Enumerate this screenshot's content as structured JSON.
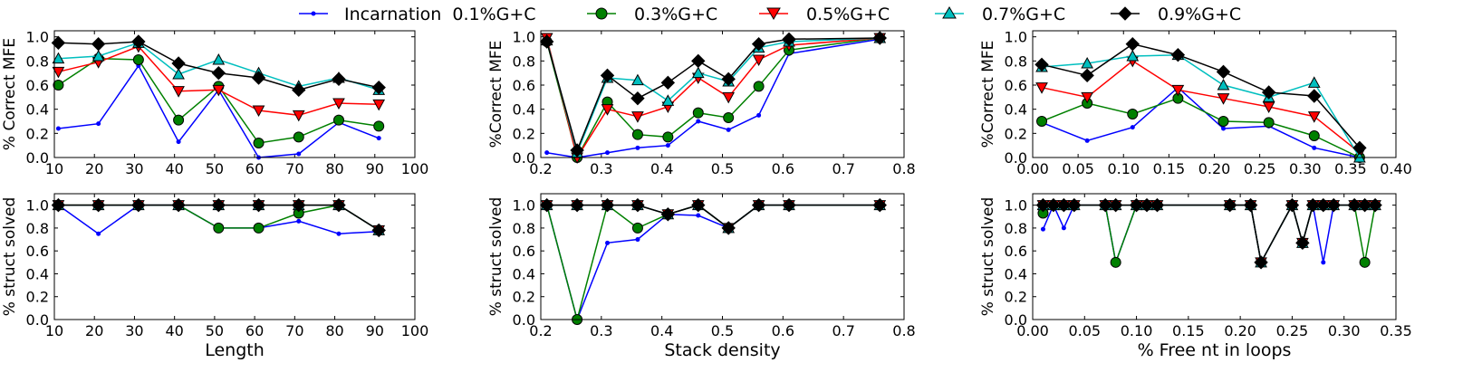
{
  "legend": {
    "items": [
      {
        "label": "Incarnation  0.1%G+C",
        "color": "#0000ff",
        "marker": "circle-small"
      },
      {
        "label": "0.3%G+C",
        "color": "#008000",
        "marker": "circle"
      },
      {
        "label": "0.5%G+C",
        "color": "#ff0000",
        "marker": "triangle-down"
      },
      {
        "label": "0.7%G+C",
        "color": "#00bfbf",
        "marker": "triangle-up"
      },
      {
        "label": "0.9%G+C",
        "color": "#000000",
        "marker": "diamond"
      }
    ]
  },
  "chart_data": [
    {
      "type": "line",
      "xlabel": "",
      "ylabel": "% Correct MFE",
      "xlim": [
        10,
        100
      ],
      "ylim": [
        0,
        1.05
      ],
      "xticks": [
        10,
        20,
        30,
        40,
        50,
        60,
        70,
        80,
        90,
        100
      ],
      "xtick_labels": [
        "10",
        "20",
        "30",
        "40",
        "50",
        "60",
        "70",
        "80",
        "90",
        "100"
      ],
      "yticks": [
        0,
        0.2,
        0.4,
        0.6,
        0.8,
        1.0
      ],
      "ytick_labels": [
        "0.0",
        "0.2",
        "0.4",
        "0.6",
        "0.8",
        "1.0"
      ],
      "x": [
        11,
        21,
        31,
        41,
        51,
        61,
        71,
        81,
        91
      ],
      "series": [
        {
          "name": "Incarnation  0.1%G+C",
          "values": [
            0.24,
            0.28,
            0.76,
            0.13,
            0.56,
            0.0,
            0.03,
            0.29,
            0.16
          ]
        },
        {
          "name": "0.3%G+C",
          "values": [
            0.6,
            0.82,
            0.81,
            0.31,
            0.59,
            0.12,
            0.17,
            0.31,
            0.26
          ]
        },
        {
          "name": "0.5%G+C",
          "values": [
            0.71,
            0.79,
            0.92,
            0.55,
            0.56,
            0.39,
            0.35,
            0.45,
            0.44
          ]
        },
        {
          "name": "0.7%G+C",
          "values": [
            0.82,
            0.84,
            0.95,
            0.69,
            0.81,
            0.7,
            0.59,
            0.66,
            0.56
          ]
        },
        {
          "name": "0.9%G+C",
          "values": [
            0.95,
            0.94,
            0.96,
            0.78,
            0.7,
            0.66,
            0.56,
            0.65,
            0.58
          ]
        }
      ]
    },
    {
      "type": "line",
      "xlabel": "",
      "ylabel": "%Correct MFE",
      "xlim": [
        0.2,
        0.8
      ],
      "ylim": [
        0,
        1.05
      ],
      "xticks": [
        0.2,
        0.3,
        0.4,
        0.5,
        0.6,
        0.7,
        0.8
      ],
      "xtick_labels": [
        "0.2",
        "0.3",
        "0.4",
        "0.5",
        "0.6",
        "0.7",
        "0.8"
      ],
      "yticks": [
        0,
        0.2,
        0.4,
        0.6,
        0.8,
        1.0
      ],
      "ytick_labels": [
        "0.0",
        "0.2",
        "0.4",
        "0.6",
        "0.8",
        "1.0"
      ],
      "x": [
        0.21,
        0.26,
        0.31,
        0.36,
        0.41,
        0.46,
        0.51,
        0.56,
        0.61,
        0.76
      ],
      "series": [
        {
          "name": "Incarnation  0.1%G+C",
          "values": [
            0.04,
            0.0,
            0.04,
            0.08,
            0.1,
            0.3,
            0.23,
            0.35,
            0.86,
            0.98
          ]
        },
        {
          "name": "0.3%G+C",
          "values": [
            0.96,
            0.0,
            0.46,
            0.19,
            0.17,
            0.37,
            0.33,
            0.59,
            0.89,
            0.99
          ]
        },
        {
          "name": "0.5%G+C",
          "values": [
            0.99,
            0.0,
            0.4,
            0.34,
            0.42,
            0.66,
            0.5,
            0.81,
            0.93,
            0.99
          ]
        },
        {
          "name": "0.7%G+C",
          "values": [
            0.97,
            0.04,
            0.66,
            0.64,
            0.47,
            0.7,
            0.63,
            0.91,
            0.96,
            0.99
          ]
        },
        {
          "name": "0.9%G+C",
          "values": [
            0.96,
            0.06,
            0.68,
            0.49,
            0.62,
            0.8,
            0.65,
            0.94,
            0.98,
            0.99
          ]
        }
      ]
    },
    {
      "type": "line",
      "xlabel": "",
      "ylabel": "%Correct MFE",
      "xlim": [
        0,
        0.4
      ],
      "ylim": [
        0,
        1.05
      ],
      "xticks": [
        0,
        0.05,
        0.1,
        0.15,
        0.2,
        0.25,
        0.3,
        0.35,
        0.4
      ],
      "xtick_labels": [
        "0.00",
        "0.05",
        "0.10",
        "0.15",
        "0.20",
        "0.25",
        "0.30",
        "0.35",
        "0.40"
      ],
      "yticks": [
        0,
        0.2,
        0.4,
        0.6,
        0.8,
        1.0
      ],
      "ytick_labels": [
        "0.0",
        "0.2",
        "0.4",
        "0.6",
        "0.8",
        "1.0"
      ],
      "x": [
        0.01,
        0.06,
        0.11,
        0.16,
        0.21,
        0.26,
        0.31,
        0.36
      ],
      "series": [
        {
          "name": "Incarnation  0.1%G+C",
          "values": [
            0.29,
            0.14,
            0.25,
            0.58,
            0.24,
            0.26,
            0.08,
            0.0
          ]
        },
        {
          "name": "0.3%G+C",
          "values": [
            0.3,
            0.45,
            0.36,
            0.49,
            0.3,
            0.29,
            0.18,
            0.0
          ]
        },
        {
          "name": "0.5%G+C",
          "values": [
            0.58,
            0.5,
            0.8,
            0.56,
            0.49,
            0.42,
            0.34,
            0.04
          ]
        },
        {
          "name": "0.7%G+C",
          "values": [
            0.75,
            0.78,
            0.84,
            0.85,
            0.6,
            0.5,
            0.62,
            0.0
          ]
        },
        {
          "name": "0.9%G+C",
          "values": [
            0.77,
            0.68,
            0.94,
            0.85,
            0.71,
            0.54,
            0.51,
            0.08
          ]
        }
      ]
    },
    {
      "type": "line",
      "xlabel": "Length",
      "ylabel": "% struct solved",
      "xlim": [
        10,
        100
      ],
      "ylim": [
        0,
        1.1
      ],
      "xticks": [
        10,
        20,
        30,
        40,
        50,
        60,
        70,
        80,
        90,
        100
      ],
      "xtick_labels": [
        "10",
        "20",
        "30",
        "40",
        "50",
        "60",
        "70",
        "80",
        "90",
        "100"
      ],
      "yticks": [
        0,
        0.2,
        0.4,
        0.6,
        0.8,
        1.0
      ],
      "ytick_labels": [
        "0.0",
        "0.2",
        "0.4",
        "0.6",
        "0.8",
        "1.0"
      ],
      "x": [
        11,
        21,
        31,
        41,
        51,
        61,
        71,
        81,
        91
      ],
      "series": [
        {
          "name": "Incarnation  0.1%G+C",
          "values": [
            1.0,
            0.75,
            1.0,
            1.0,
            0.8,
            0.8,
            0.86,
            0.75,
            0.77
          ]
        },
        {
          "name": "0.3%G+C",
          "values": [
            1.0,
            1.0,
            1.0,
            1.0,
            0.8,
            0.8,
            0.93,
            1.0,
            0.78
          ]
        },
        {
          "name": "0.5%G+C",
          "values": [
            1.0,
            1.0,
            1.0,
            1.0,
            1.0,
            1.0,
            1.0,
            1.0,
            0.78
          ]
        },
        {
          "name": "0.7%G+C",
          "values": [
            1.0,
            1.0,
            1.0,
            1.0,
            1.0,
            1.0,
            1.0,
            1.0,
            0.78
          ]
        },
        {
          "name": "0.9%G+C",
          "values": [
            1.0,
            1.0,
            1.0,
            1.0,
            1.0,
            1.0,
            1.0,
            1.0,
            0.78
          ]
        }
      ]
    },
    {
      "type": "line",
      "xlabel": "Stack density",
      "ylabel": "% struct solved",
      "xlim": [
        0.2,
        0.8
      ],
      "ylim": [
        0,
        1.1
      ],
      "xticks": [
        0.2,
        0.3,
        0.4,
        0.5,
        0.6,
        0.7,
        0.8
      ],
      "xtick_labels": [
        "0.2",
        "0.3",
        "0.4",
        "0.5",
        "0.6",
        "0.7",
        "0.8"
      ],
      "yticks": [
        0,
        0.2,
        0.4,
        0.6,
        0.8,
        1.0
      ],
      "ytick_labels": [
        "0.0",
        "0.2",
        "0.4",
        "0.6",
        "0.8",
        "1.0"
      ],
      "x": [
        0.21,
        0.26,
        0.31,
        0.36,
        0.41,
        0.46,
        0.51,
        0.56,
        0.61,
        0.76
      ],
      "series": [
        {
          "name": "Incarnation  0.1%G+C",
          "values": [
            1.0,
            0.0,
            0.67,
            0.7,
            0.92,
            0.91,
            0.8,
            1.0,
            1.0,
            1.0
          ]
        },
        {
          "name": "0.3%G+C",
          "values": [
            1.0,
            0.0,
            1.0,
            0.8,
            0.92,
            1.0,
            0.8,
            1.0,
            1.0,
            1.0
          ]
        },
        {
          "name": "0.5%G+C",
          "values": [
            1.0,
            1.0,
            1.0,
            1.0,
            0.92,
            1.0,
            0.8,
            1.0,
            1.0,
            1.0
          ]
        },
        {
          "name": "0.7%G+C",
          "values": [
            1.0,
            1.0,
            1.0,
            1.0,
            0.92,
            1.0,
            0.8,
            1.0,
            1.0,
            1.0
          ]
        },
        {
          "name": "0.9%G+C",
          "values": [
            1.0,
            1.0,
            1.0,
            1.0,
            0.92,
            1.0,
            0.8,
            1.0,
            1.0,
            1.0
          ]
        }
      ]
    },
    {
      "type": "line",
      "xlabel": "% Free nt in loops",
      "ylabel": "% struct solved",
      "xlim": [
        0,
        0.35
      ],
      "ylim": [
        0,
        1.1
      ],
      "xticks": [
        0,
        0.05,
        0.1,
        0.15,
        0.2,
        0.25,
        0.3,
        0.35
      ],
      "xtick_labels": [
        "0.00",
        "0.05",
        "0.10",
        "0.15",
        "0.20",
        "0.25",
        "0.30",
        "0.35"
      ],
      "yticks": [
        0,
        0.2,
        0.4,
        0.6,
        0.8,
        1.0
      ],
      "ytick_labels": [
        "0.0",
        "0.2",
        "0.4",
        "0.6",
        "0.8",
        "1.0"
      ],
      "x": [
        0.01,
        0.02,
        0.03,
        0.04,
        0.07,
        0.08,
        0.1,
        0.11,
        0.12,
        0.19,
        0.21,
        0.22,
        0.25,
        0.26,
        0.27,
        0.28,
        0.29,
        0.31,
        0.32,
        0.33
      ],
      "series": [
        {
          "name": "Incarnation  0.1%G+C",
          "values": [
            0.79,
            1.0,
            0.8,
            1.0,
            1.0,
            0.5,
            1.0,
            1.0,
            1.0,
            1.0,
            1.0,
            0.5,
            1.0,
            0.67,
            1.0,
            0.5,
            1.0,
            1.0,
            1.0,
            1.0
          ]
        },
        {
          "name": "0.3%G+C",
          "values": [
            0.93,
            1.0,
            1.0,
            1.0,
            1.0,
            0.5,
            1.0,
            1.0,
            1.0,
            1.0,
            1.0,
            0.5,
            1.0,
            0.67,
            1.0,
            1.0,
            1.0,
            1.0,
            0.5,
            1.0
          ]
        },
        {
          "name": "0.5%G+C",
          "values": [
            1.0,
            1.0,
            1.0,
            1.0,
            1.0,
            1.0,
            1.0,
            1.0,
            1.0,
            1.0,
            1.0,
            0.5,
            1.0,
            0.67,
            1.0,
            1.0,
            1.0,
            1.0,
            1.0,
            1.0
          ]
        },
        {
          "name": "0.7%G+C",
          "values": [
            1.0,
            1.0,
            1.0,
            1.0,
            1.0,
            1.0,
            1.0,
            1.0,
            1.0,
            1.0,
            1.0,
            0.5,
            1.0,
            0.67,
            1.0,
            1.0,
            1.0,
            1.0,
            1.0,
            1.0
          ]
        },
        {
          "name": "0.9%G+C",
          "values": [
            1.0,
            1.0,
            1.0,
            1.0,
            1.0,
            1.0,
            1.0,
            1.0,
            1.0,
            1.0,
            1.0,
            0.5,
            1.0,
            0.67,
            1.0,
            1.0,
            1.0,
            1.0,
            1.0,
            1.0
          ]
        }
      ]
    }
  ]
}
